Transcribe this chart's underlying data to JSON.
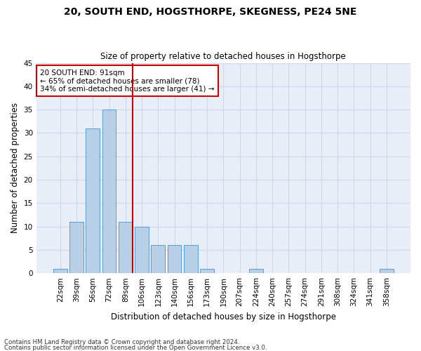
{
  "title1": "20, SOUTH END, HOGSTHORPE, SKEGNESS, PE24 5NE",
  "title2": "Size of property relative to detached houses in Hogsthorpe",
  "xlabel": "Distribution of detached houses by size in Hogsthorpe",
  "ylabel": "Number of detached properties",
  "categories": [
    "22sqm",
    "39sqm",
    "56sqm",
    "72sqm",
    "89sqm",
    "106sqm",
    "123sqm",
    "140sqm",
    "156sqm",
    "173sqm",
    "190sqm",
    "207sqm",
    "224sqm",
    "240sqm",
    "257sqm",
    "274sqm",
    "291sqm",
    "308sqm",
    "324sqm",
    "341sqm",
    "358sqm"
  ],
  "values": [
    1,
    11,
    31,
    35,
    11,
    10,
    6,
    6,
    6,
    1,
    0,
    0,
    1,
    0,
    0,
    0,
    0,
    0,
    0,
    0,
    1
  ],
  "bar_color": "#b8cfe8",
  "bar_edge_color": "#5b9bd5",
  "reference_line_index": 4,
  "reference_line_color": "#cc0000",
  "annotation_line1": "20 SOUTH END: 91sqm",
  "annotation_line2": "← 65% of detached houses are smaller (78)",
  "annotation_line3": "34% of semi-detached houses are larger (41) →",
  "annotation_box_color": "#cc0000",
  "ylim": [
    0,
    45
  ],
  "yticks": [
    0,
    5,
    10,
    15,
    20,
    25,
    30,
    35,
    40,
    45
  ],
  "grid_color": "#d0d8e8",
  "bg_color": "#e8eef8",
  "footnote1": "Contains HM Land Registry data © Crown copyright and database right 2024.",
  "footnote2": "Contains public sector information licensed under the Open Government Licence v3.0."
}
